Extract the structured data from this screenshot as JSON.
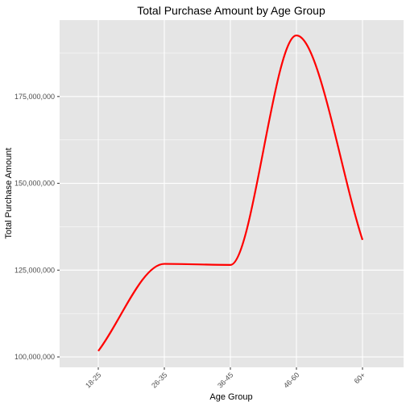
{
  "chart_data": {
    "type": "line",
    "title": "Total Purchase Amount by Age Group",
    "xlabel": "Age Group",
    "ylabel": "Total Purchase Amount",
    "categories": [
      "18-25",
      "26-35",
      "36-45",
      "46-60",
      "60+"
    ],
    "series": [
      {
        "values": [
          101700000,
          126800000,
          126500000,
          192600000,
          133700000
        ],
        "color": "#ff0000"
      }
    ],
    "ylim": [
      97000000,
      197000000
    ],
    "y_ticks": [
      100000000,
      125000000,
      150000000,
      175000000
    ],
    "y_tick_labels": [
      "100,000,000",
      "125,000,000",
      "150,000,000",
      "175,000,000"
    ],
    "line_style": "smoothed",
    "grid": true,
    "legend": "none",
    "panel_background": "#e5e5e5",
    "grid_color": "#ffffff"
  }
}
